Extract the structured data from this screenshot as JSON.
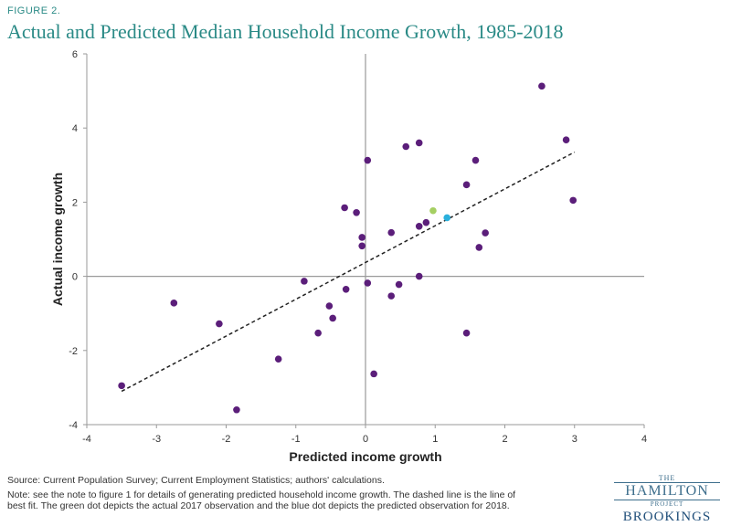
{
  "figure_label": "FIGURE 2.",
  "title": "Actual and Predicted Median Household Income Growth, 1985-2018",
  "source": "Source: Current Population Survey; Current Employment Statistics; authors' calculations.",
  "note": "Note: see the note to figure 1 for details of generating predicted household income growth. The dashed line is the line of best fit. The green dot depicts the actual 2017 observation and the blue dot depicts the predicted observation for 2018.",
  "logo": {
    "the": "THE",
    "hamilton": "HAMILTON",
    "project": "PROJECT",
    "brookings": "BROOKINGS"
  },
  "colors": {
    "points": "#5b1e7a",
    "highlight_2017": "#a5cf62",
    "highlight_2018": "#2ab0dc",
    "fit_line": "#222222",
    "axis": "#9a9a9a",
    "title": "#2a8a86"
  },
  "chart_data": {
    "type": "scatter",
    "xlabel": "Predicted income growth",
    "ylabel": "Actual income growth",
    "xlim": [
      -4,
      4
    ],
    "ylim": [
      -4,
      6
    ],
    "xticks": [
      "-4",
      "-3",
      "-2",
      "-1",
      "0",
      "1",
      "2",
      "3",
      "4"
    ],
    "yticks": [
      "-4",
      "-2",
      "0",
      "2",
      "4",
      "6"
    ],
    "grid": false,
    "series": [
      {
        "points": [
          [
            -3.5,
            -2.95
          ],
          [
            -2.75,
            -0.72
          ],
          [
            -2.1,
            -1.28
          ],
          [
            -1.85,
            -3.6
          ],
          [
            -1.25,
            -2.23
          ],
          [
            -0.88,
            -0.13
          ],
          [
            -0.68,
            -1.53
          ],
          [
            -0.52,
            -0.8
          ],
          [
            -0.47,
            -1.13
          ],
          [
            -0.28,
            -0.35
          ],
          [
            -0.3,
            1.85
          ],
          [
            -0.13,
            1.72
          ],
          [
            -0.05,
            1.05
          ],
          [
            -0.05,
            0.82
          ],
          [
            0.03,
            -0.18
          ],
          [
            0.03,
            3.13
          ],
          [
            0.12,
            -2.63
          ],
          [
            0.37,
            1.18
          ],
          [
            0.37,
            -0.53
          ],
          [
            0.48,
            -0.22
          ],
          [
            0.58,
            3.5
          ],
          [
            0.77,
            3.6
          ],
          [
            0.77,
            1.35
          ],
          [
            0.77,
            0.0
          ],
          [
            0.87,
            1.45
          ],
          [
            1.45,
            2.47
          ],
          [
            1.45,
            -1.53
          ],
          [
            1.58,
            3.13
          ],
          [
            1.63,
            0.78
          ],
          [
            1.72,
            1.17
          ],
          [
            2.53,
            5.13
          ],
          [
            2.88,
            3.68
          ],
          [
            2.98,
            2.05
          ]
        ]
      },
      {
        "points": [
          [
            0.97,
            1.77
          ]
        ]
      },
      {
        "points": [
          [
            1.17,
            1.58
          ]
        ]
      }
    ],
    "fit_line": {
      "x": [
        -3.5,
        3.0
      ],
      "y": [
        -3.1,
        3.35
      ],
      "style": "dashed"
    }
  }
}
